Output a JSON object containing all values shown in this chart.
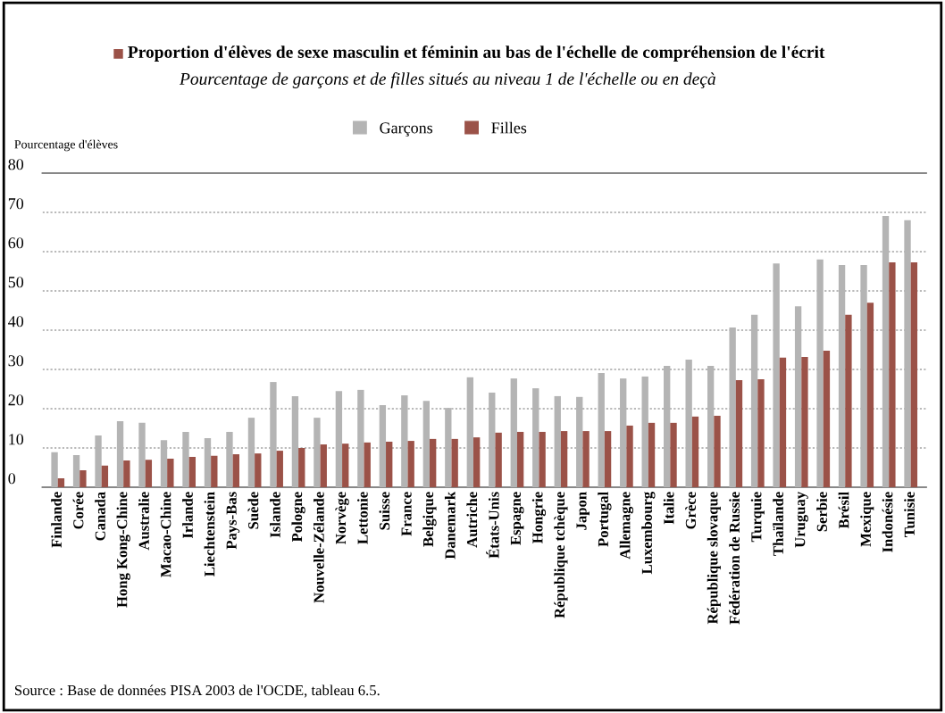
{
  "chart_data": {
    "type": "bar",
    "title": "Proportion d'élèves de sexe masculin et féminin au bas de l'échelle de compréhension de l'écrit",
    "subtitle": "Pourcentage de garçons et de filles situés au niveau 1 de l'échelle ou en deçà",
    "ylabel": "Pourcentage d'élèves",
    "categories": [
      "Finlande",
      "Corée",
      "Canada",
      "Hong Kong-Chine",
      "Australie",
      "Macao-Chine",
      "Irlande",
      "Liechtenstein",
      "Pays-Bas",
      "Suède",
      "Islande",
      "Pologne",
      "Nouvelle-Zélande",
      "Norvège",
      "Lettonie",
      "Suisse",
      "France",
      "Belgique",
      "Danemark",
      "Autriche",
      "États-Unis",
      "Espagne",
      "Hongrie",
      "République tchèque",
      "Japon",
      "Portugal",
      "Allemagne",
      "Luxembourg",
      "Italie",
      "Grèce",
      "République slovaque",
      "Fédération de Russie",
      "Turquie",
      "Thaïlande",
      "Uruguay",
      "Serbie",
      "Brésil",
      "Mexique",
      "Indonésie",
      "Tunisie"
    ],
    "series": [
      {
        "name": "Garçons",
        "color": "#b4b4b4",
        "values": [
          8.9,
          8.2,
          13.2,
          16.8,
          16.4,
          12,
          14.1,
          12.5,
          14.1,
          17.7,
          26.8,
          23.2,
          17.7,
          24.5,
          24.8,
          20.9,
          23.4,
          22,
          20.2,
          28,
          24.1,
          27.7,
          25.2,
          23.2,
          23,
          29.1,
          27.7,
          28.2,
          30.9,
          32.5,
          30.9,
          40.7,
          43.9,
          57,
          46.1,
          58,
          56.6,
          56.6,
          69.1,
          68
        ]
      },
      {
        "name": "Filles",
        "color": "#9b5248",
        "values": [
          2.3,
          4.3,
          5.5,
          6.8,
          7,
          7.3,
          7.7,
          8,
          8.4,
          8.6,
          9.3,
          10,
          10.9,
          11.1,
          11.4,
          11.6,
          11.8,
          12.3,
          12.3,
          12.7,
          13.9,
          14.1,
          14.1,
          14.3,
          14.3,
          14.3,
          15.7,
          16.4,
          16.4,
          18,
          18.2,
          27.3,
          27.5,
          33,
          33.2,
          34.8,
          43.9,
          47,
          57.3,
          57.3
        ]
      }
    ],
    "ylim": [
      0,
      80
    ],
    "yticks": [
      0,
      10,
      20,
      30,
      40,
      50,
      60,
      70,
      80
    ],
    "grid": "y",
    "legend": "top",
    "annotations": [
      "Source : Base de données PISA 2003 de l'OCDE, tableau 6.5."
    ]
  }
}
